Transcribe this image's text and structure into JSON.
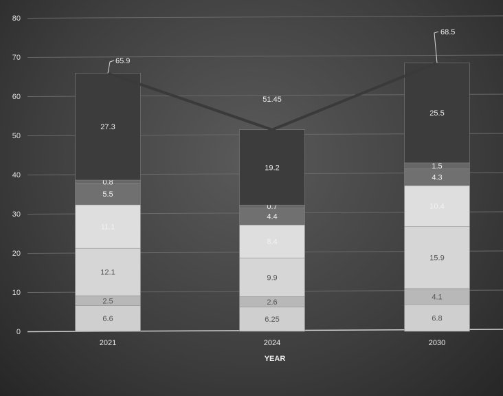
{
  "chart_data": {
    "type": "bar",
    "stacked": true,
    "xlabel": "YEAR",
    "ylabel": "",
    "categories": [
      "2021",
      "2024",
      "2030"
    ],
    "ylim": [
      0,
      80
    ],
    "yticks": [
      0,
      10,
      20,
      30,
      40,
      50,
      60,
      70,
      80
    ],
    "grid": true,
    "segments": [
      {
        "values": [
          6.6,
          6.25,
          6.8
        ],
        "color": "#cfcfcf"
      },
      {
        "values": [
          2.5,
          2.6,
          4.1
        ],
        "color": "#b8b8b8"
      },
      {
        "values": [
          12.1,
          9.9,
          15.9
        ],
        "color": "#d6d6d6"
      },
      {
        "values": [
          11.1,
          8.4,
          10.4
        ],
        "color": "#dedede"
      },
      {
        "values": [
          5.5,
          4.4,
          4.3
        ],
        "color": "#707070"
      },
      {
        "values": [
          0.8,
          0.7,
          1.5
        ],
        "color": "#666666"
      },
      {
        "values": [
          27.3,
          19.2,
          25.5
        ],
        "color": "#3c3c3c"
      }
    ],
    "totals_line": {
      "values": [
        65.9,
        51.45,
        68.5
      ],
      "labels": [
        "65.9",
        "51.45",
        "68.5"
      ],
      "color": "#3a3a3a"
    }
  }
}
